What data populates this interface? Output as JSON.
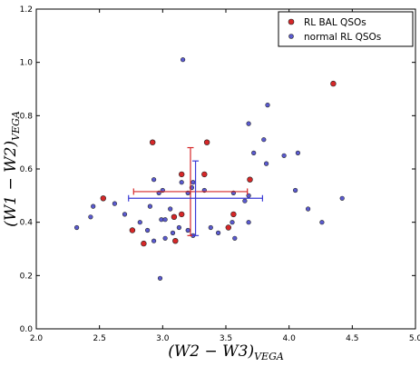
{
  "chart_data": {
    "type": "scatter",
    "xlabel": "(W2 − W3)",
    "xlabel_sub": "VEGA",
    "ylabel": "(W1 − W2)",
    "ylabel_sub": "VEGA",
    "xlim": [
      2.0,
      5.0
    ],
    "ylim": [
      0.0,
      1.2
    ],
    "xticks": [
      "2.0",
      "2.5",
      "3.0",
      "3.5",
      "4.0",
      "4.5",
      "5.0"
    ],
    "yticks": [
      "0.0",
      "0.2",
      "0.4",
      "0.6",
      "0.8",
      "1.0",
      "1.2"
    ],
    "grid": false,
    "legend_position": "top-right",
    "series": [
      {
        "name": "RL BAL QSOs",
        "color": "#d62728",
        "x": [
          4.35,
          2.92,
          3.35,
          2.53,
          3.15,
          3.33,
          3.69,
          3.56,
          3.09,
          3.15,
          2.76,
          3.1,
          3.52,
          2.85
        ],
        "y": [
          0.92,
          0.7,
          0.7,
          0.49,
          0.58,
          0.58,
          0.56,
          0.43,
          0.42,
          0.43,
          0.37,
          0.33,
          0.38,
          0.32
        ]
      },
      {
        "name": "normal RL QSOs",
        "color": "#5a5ad0",
        "x": [
          3.16,
          3.83,
          3.68,
          3.8,
          3.72,
          3.96,
          4.07,
          3.24,
          3.15,
          3.82,
          3.23,
          3.33,
          3.2,
          2.93,
          3.0,
          2.97,
          3.56,
          3.65,
          3.68,
          4.05,
          4.15,
          4.42,
          2.45,
          2.43,
          2.62,
          2.7,
          2.9,
          2.99,
          3.02,
          3.06,
          3.55,
          3.68,
          3.24,
          3.38,
          2.82,
          2.88,
          2.93,
          3.02,
          3.08,
          3.13,
          3.2,
          3.44,
          3.57,
          4.26,
          2.32,
          2.98
        ],
        "y": [
          1.01,
          0.84,
          0.77,
          0.71,
          0.66,
          0.65,
          0.66,
          0.55,
          0.55,
          0.62,
          0.53,
          0.52,
          0.51,
          0.56,
          0.52,
          0.51,
          0.51,
          0.48,
          0.5,
          0.52,
          0.45,
          0.49,
          0.46,
          0.42,
          0.47,
          0.43,
          0.46,
          0.41,
          0.41,
          0.45,
          0.4,
          0.4,
          0.35,
          0.38,
          0.4,
          0.37,
          0.33,
          0.34,
          0.36,
          0.38,
          0.37,
          0.36,
          0.34,
          0.4,
          0.38,
          0.19
        ]
      }
    ],
    "error_bars": [
      {
        "series": "RL BAL QSOs",
        "color": "#d62728",
        "x": 3.22,
        "y": 0.515,
        "xerr": 0.45,
        "yerr": 0.165
      },
      {
        "series": "normal RL QSOs",
        "color": "#3b3bd6",
        "x": 3.26,
        "y": 0.49,
        "xerr": 0.53,
        "yerr": 0.14
      }
    ]
  }
}
